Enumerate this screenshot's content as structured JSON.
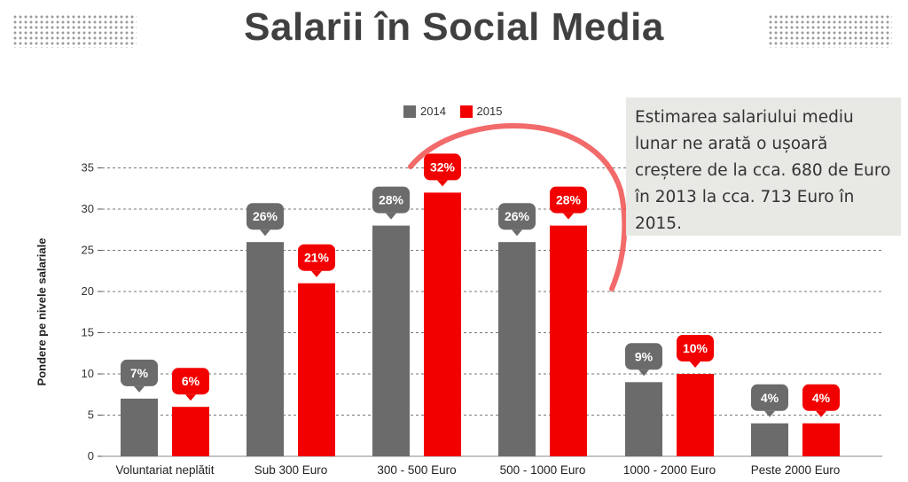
{
  "title": "Salarii în Social Media",
  "callout_text": "Estimarea salariului mediu lunar ne arată o ușoară creștere de la cca. 680 de Euro în 2013 la cca. 713 Euro în 2015.",
  "colors": {
    "series_2014": "#6b6b6b",
    "series_2015": "#f20000",
    "arc": "#f05050",
    "title": "#404040"
  },
  "chart_data": {
    "type": "bar",
    "ylabel": "Pondere pe nivele salariale",
    "ylim": [
      0,
      35
    ],
    "yticks": [
      0,
      5,
      10,
      15,
      20,
      25,
      30,
      35
    ],
    "grid": true,
    "legend_position": "top-center",
    "categories": [
      "Voluntariat neplătit",
      "Sub 300 Euro",
      "300 - 500 Euro",
      "500 - 1000 Euro",
      "1000 - 2000 Euro",
      "Peste 2000 Euro"
    ],
    "series": [
      {
        "name": "2014",
        "values": [
          7,
          26,
          28,
          26,
          9,
          4
        ],
        "labels": [
          "7%",
          "26%",
          "28%",
          "26%",
          "9%",
          "4%"
        ]
      },
      {
        "name": "2015",
        "values": [
          6,
          21,
          32,
          28,
          10,
          4
        ],
        "labels": [
          "6%",
          "21%",
          "32%",
          "28%",
          "10%",
          "4%"
        ]
      }
    ]
  }
}
